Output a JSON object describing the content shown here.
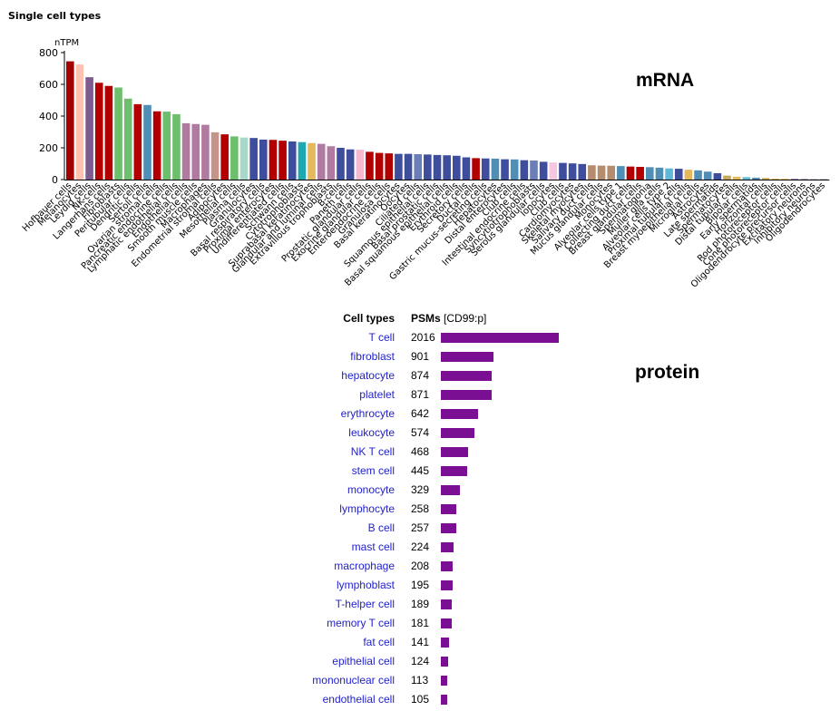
{
  "section_title": "Single cell types",
  "mrna_label": "mRNA",
  "protein_label": "protein",
  "chart_data": [
    {
      "type": "bar",
      "ylabel": "nTPM",
      "ylim": [
        0,
        800
      ],
      "yticks": [
        0,
        200,
        400,
        600,
        800
      ],
      "grid": false,
      "categories": [
        "Hofbauer cells",
        "Melanocytes",
        "Leydig cells",
        "NK-cells",
        "Langerhans cells",
        "Fibroblasts",
        "Peritubular cells",
        "Dendritic cells",
        "Sertoli cells",
        "Ovarian stromal cells",
        "Pancreatic endocrine cells",
        "Lymphatic endothelial cells",
        "Endothelial cells",
        "Smooth muscle cells",
        "Macrophages",
        "Endometrial stromal cells",
        "Adipocytes",
        "Mesothelial cells",
        "Plasma cells",
        "Granulocytes",
        "Basal respiratory cells",
        "Proximal enterocytes",
        "Undifferentiated cells",
        "Schwann cells",
        "Cytotrophoblasts",
        "Suprabasal keratinocytes",
        "Glandular and luminal cells",
        "Extravillous trophoblasts",
        "B-cells",
        "Paneth cells",
        "Prostatic glandular cells",
        "Exocrine glandular cells",
        "Enteroendocrine cells",
        "Granulosa cells",
        "Basal keratinocytes",
        "Oocytes",
        "Ciliated cells",
        "Squamous epithelial cells",
        "Basal prostatic cells",
        "Basal squamous epithelial cells",
        "Erythroid cells",
        "Secretory cells",
        "Ductal cells",
        "Gastric mucus-secreting cells",
        "Hepatocytes",
        "Distal enterocytes",
        "Club cells",
        "Intestinal endocrine cells",
        "Syncytiotrophoblasts",
        "Serous glandular cells",
        "Ionocytes",
        "Club cells",
        "Cardiomyocytes",
        "Skeletal myocytes",
        "Salivary duct cells",
        "Mucus glandular cells",
        "Monocytes",
        "Alveolar cells type 1",
        "Collecting duct cells",
        "Breast glandular cells",
        "Spermatogonia",
        "Muller glia cells",
        "Alveolar cells type 2",
        "Proximal tubular cells",
        "Breast myoepithelial cells",
        "Microglial cells",
        "Astrocytes",
        "Late spermatids",
        "Spermatocytes",
        "Distal tubular cells",
        "Bipolar cells",
        "Early spermatids",
        "Horizontal cells",
        "Rod photoreceptor cells",
        "Cone photoreceptor cells",
        "Oligodendrocyte precursor cells",
        "Excitatory neurons",
        "Inhibitory neurons",
        "Oligodendrocytes"
      ],
      "values": [
        745,
        725,
        645,
        610,
        590,
        580,
        510,
        475,
        470,
        430,
        428,
        412,
        355,
        350,
        345,
        298,
        285,
        272,
        265,
        262,
        252,
        250,
        245,
        240,
        236,
        230,
        225,
        210,
        200,
        190,
        188,
        175,
        168,
        165,
        162,
        162,
        160,
        158,
        155,
        153,
        150,
        140,
        135,
        133,
        132,
        128,
        127,
        122,
        120,
        112,
        108,
        105,
        102,
        98,
        90,
        88,
        87,
        85,
        82,
        80,
        78,
        75,
        70,
        68,
        62,
        58,
        50,
        40,
        25,
        18,
        15,
        12,
        10,
        6,
        5,
        4,
        3,
        2,
        2
      ],
      "colors": [
        "#a30000",
        "#ffc2b0",
        "#7d5c8e",
        "#b20000",
        "#b20000",
        "#6dbe6d",
        "#6dbe6d",
        "#b20000",
        "#4f8fb5",
        "#b20000",
        "#6dbe6d",
        "#6dbe6d",
        "#b07aa1",
        "#b07aa1",
        "#b07aa1",
        "#c4968a",
        "#b20000",
        "#6dbe6d",
        "#a8d8c8",
        "#3f4e9c",
        "#3f4e9c",
        "#b20000",
        "#b20000",
        "#3f4e9c",
        "#1fa8b0",
        "#e6b85c",
        "#b07aa1",
        "#b07aa1",
        "#3f4e9c",
        "#3f4e9c",
        "#f7b8d0",
        "#b20000",
        "#b20000",
        "#b20000",
        "#3f4e9c",
        "#3f4e9c",
        "#6a7fb8",
        "#3f4e9c",
        "#3f4e9c",
        "#3f4e9c",
        "#3f4e9c",
        "#3f4e9c",
        "#b20000",
        "#3f4e9c",
        "#4f8fb5",
        "#3f4e9c",
        "#4f8fb5",
        "#3f4e9c",
        "#6a7fb8",
        "#3f4e9c",
        "#f7c6e0",
        "#3f4e9c",
        "#3f4e9c",
        "#3f4e9c",
        "#b58c6e",
        "#b58c6e",
        "#b58c6e",
        "#4f8fb5",
        "#b20000",
        "#b20000",
        "#4f8fb5",
        "#4f8fb5",
        "#5fb8d8",
        "#3f4e9c",
        "#e6b85c",
        "#4f8fb5",
        "#4f8fb5",
        "#3f4e9c",
        "#c9a85c",
        "#e6b85c",
        "#5fb8d8",
        "#4f8fb5",
        "#c9a85c",
        "#e6b85c",
        "#e6b85c",
        "#7d5c8e",
        "#7d5c8e",
        "#7d5c8e",
        "#7d5c8e"
      ]
    },
    {
      "type": "bar",
      "orientation": "horizontal",
      "headers": {
        "cell_types": "Cell types",
        "psms": "PSMs",
        "protein_id": "[CD99:p]"
      },
      "categories": [
        "T cell",
        "fibroblast",
        "hepatocyte",
        "platelet",
        "erythrocyte",
        "leukocyte",
        "NK T cell",
        "stem cell",
        "monocyte",
        "lymphocyte",
        "B cell",
        "mast cell",
        "macrophage",
        "lymphoblast",
        "T-helper cell",
        "memory T cell",
        "fat cell",
        "epithelial cell",
        "mononuclear cell",
        "endothelial cell"
      ],
      "values": [
        2016,
        901,
        874,
        871,
        642,
        574,
        468,
        445,
        329,
        258,
        257,
        224,
        208,
        195,
        189,
        181,
        141,
        124,
        113,
        105
      ],
      "bar_color": "#7b0f94"
    }
  ]
}
